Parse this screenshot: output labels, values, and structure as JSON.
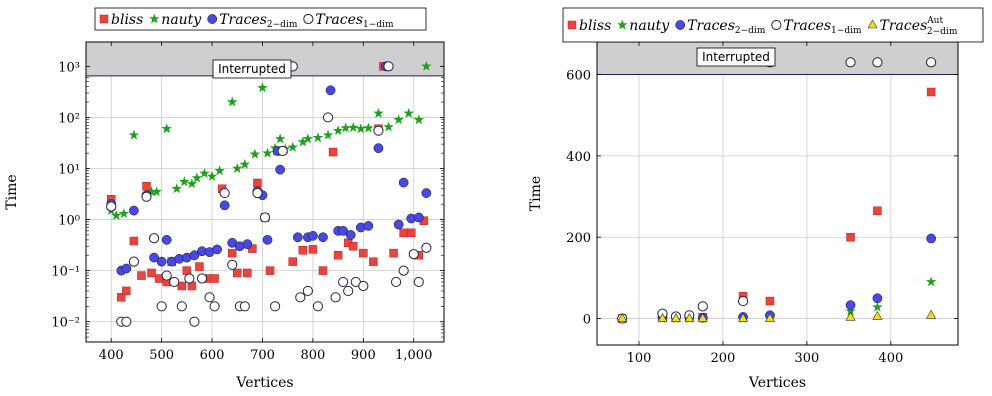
{
  "colors": {
    "bliss": "#e8453c",
    "nauty": "#1ea11e",
    "traces2": "#4848e6",
    "traces1_fill": "#ffffff",
    "traces1_stroke": "#222244",
    "aut": "#f0e010",
    "band": "#cfcfcf",
    "grid": "#cccccc"
  },
  "chart_data": [
    {
      "type": "scatter",
      "xlabel": "Vertices",
      "ylabel": "Time",
      "xscale": "linear",
      "yscale": "log",
      "xlim": [
        350,
        1060
      ],
      "ylim": [
        0.004,
        3000
      ],
      "xticks": [
        400,
        500,
        600,
        700,
        800,
        900,
        1000
      ],
      "xtick_labels": [
        "400",
        "500",
        "600",
        "700",
        "800",
        "900",
        "1,000"
      ],
      "yticks": [
        0.01,
        0.1,
        1,
        10,
        100,
        1000
      ],
      "ytick_labels": [
        "10⁻²",
        "10⁻¹",
        "10⁰",
        "10¹",
        "10²",
        "10³"
      ],
      "grid": true,
      "band_label": "Interrupted",
      "band_from": 650,
      "legend": [
        {
          "series": "bliss",
          "main": "bliss",
          "sub": "",
          "sup": ""
        },
        {
          "series": "nauty",
          "main": "nauty",
          "sub": "",
          "sup": ""
        },
        {
          "series": "traces2",
          "main": "Traces",
          "sub": "2−dim",
          "sup": ""
        },
        {
          "series": "traces1",
          "main": "Traces",
          "sub": "1−dim",
          "sup": ""
        }
      ],
      "series": [
        {
          "name": "bliss",
          "marker": "square",
          "points": [
            [
              400,
              2.5
            ],
            [
              420,
              0.03
            ],
            [
              430,
              0.04
            ],
            [
              445,
              0.38
            ],
            [
              460,
              0.08
            ],
            [
              470,
              4.5
            ],
            [
              480,
              0.09
            ],
            [
              495,
              0.07
            ],
            [
              510,
              0.06
            ],
            [
              520,
              0.15
            ],
            [
              540,
              0.05
            ],
            [
              550,
              0.1
            ],
            [
              560,
              0.05
            ],
            [
              575,
              0.12
            ],
            [
              590,
              0.07
            ],
            [
              605,
              0.07
            ],
            [
              620,
              4.0
            ],
            [
              640,
              0.22
            ],
            [
              650,
              0.09
            ],
            [
              670,
              0.09
            ],
            [
              680,
              0.27
            ],
            [
              690,
              5.2
            ],
            [
              705,
              1.1
            ],
            [
              715,
              0.1
            ],
            [
              730,
              22
            ],
            [
              740,
              1000
            ],
            [
              760,
              0.15
            ],
            [
              780,
              0.25
            ],
            [
              800,
              0.26
            ],
            [
              820,
              0.1
            ],
            [
              840,
              21
            ],
            [
              850,
              0.2
            ],
            [
              870,
              0.35
            ],
            [
              880,
              0.3
            ],
            [
              900,
              0.22
            ],
            [
              920,
              0.15
            ],
            [
              930,
              60
            ],
            [
              940,
              1000
            ],
            [
              960,
              0.22
            ],
            [
              980,
              0.55
            ],
            [
              995,
              0.55
            ],
            [
              1010,
              0.2
            ],
            [
              1020,
              0.95
            ]
          ]
        },
        {
          "name": "nauty",
          "marker": "star",
          "points": [
            [
              400,
              1.5
            ],
            [
              410,
              1.2
            ],
            [
              425,
              1.3
            ],
            [
              445,
              45
            ],
            [
              470,
              3.0
            ],
            [
              480,
              3.5
            ],
            [
              490,
              3.5
            ],
            [
              510,
              60
            ],
            [
              530,
              4.0
            ],
            [
              545,
              5.5
            ],
            [
              560,
              5.0
            ],
            [
              570,
              6.5
            ],
            [
              585,
              8.0
            ],
            [
              600,
              7.0
            ],
            [
              615,
              9.0
            ],
            [
              640,
              200
            ],
            [
              650,
              10
            ],
            [
              665,
              12
            ],
            [
              685,
              19
            ],
            [
              700,
              380
            ],
            [
              710,
              20
            ],
            [
              725,
              25
            ],
            [
              735,
              38
            ],
            [
              745,
              24
            ],
            [
              760,
              26
            ],
            [
              780,
              33
            ],
            [
              790,
              38
            ],
            [
              810,
              40
            ],
            [
              830,
              45
            ],
            [
              850,
              55
            ],
            [
              865,
              62
            ],
            [
              880,
              63
            ],
            [
              895,
              60
            ],
            [
              910,
              62
            ],
            [
              930,
              120
            ],
            [
              950,
              65
            ],
            [
              970,
              90
            ],
            [
              990,
              120
            ],
            [
              1010,
              90
            ],
            [
              1025,
              1000
            ]
          ]
        },
        {
          "name": "traces2",
          "marker": "circle",
          "points": [
            [
              400,
              2.0
            ],
            [
              420,
              0.1
            ],
            [
              430,
              0.11
            ],
            [
              445,
              1.5
            ],
            [
              470,
              3.0
            ],
            [
              485,
              0.18
            ],
            [
              500,
              0.15
            ],
            [
              510,
              0.4
            ],
            [
              520,
              0.15
            ],
            [
              535,
              0.17
            ],
            [
              550,
              0.18
            ],
            [
              565,
              0.2
            ],
            [
              580,
              0.24
            ],
            [
              595,
              0.23
            ],
            [
              610,
              0.26
            ],
            [
              625,
              1.9
            ],
            [
              640,
              0.35
            ],
            [
              655,
              0.3
            ],
            [
              670,
              0.33
            ],
            [
              690,
              3.6
            ],
            [
              700,
              3.0
            ],
            [
              710,
              0.4
            ],
            [
              730,
              22
            ],
            [
              735,
              9.5
            ],
            [
              750,
              1000
            ],
            [
              760,
              1000
            ],
            [
              770,
              0.45
            ],
            [
              790,
              0.45
            ],
            [
              800,
              0.48
            ],
            [
              820,
              0.45
            ],
            [
              835,
              340
            ],
            [
              850,
              0.6
            ],
            [
              860,
              0.6
            ],
            [
              875,
              0.5
            ],
            [
              895,
              0.7
            ],
            [
              910,
              0.75
            ],
            [
              930,
              25
            ],
            [
              945,
              1000
            ],
            [
              950,
              1000
            ],
            [
              970,
              0.8
            ],
            [
              980,
              5.3
            ],
            [
              995,
              1.05
            ],
            [
              1010,
              1.1
            ],
            [
              1025,
              3.3
            ]
          ]
        },
        {
          "name": "traces1",
          "marker": "open-circle",
          "points": [
            [
              400,
              1.8
            ],
            [
              420,
              0.01
            ],
            [
              430,
              0.01
            ],
            [
              445,
              0.15
            ],
            [
              470,
              2.8
            ],
            [
              485,
              0.43
            ],
            [
              500,
              0.02
            ],
            [
              510,
              0.08
            ],
            [
              525,
              0.06
            ],
            [
              540,
              0.02
            ],
            [
              555,
              0.07
            ],
            [
              565,
              0.01
            ],
            [
              580,
              0.07
            ],
            [
              595,
              0.03
            ],
            [
              605,
              0.02
            ],
            [
              625,
              3.3
            ],
            [
              640,
              0.13
            ],
            [
              655,
              0.02
            ],
            [
              665,
              0.02
            ],
            [
              690,
              3.3
            ],
            [
              705,
              1.1
            ],
            [
              725,
              0.02
            ],
            [
              740,
              22
            ],
            [
              760,
              1000
            ],
            [
              775,
              0.03
            ],
            [
              790,
              0.04
            ],
            [
              810,
              0.02
            ],
            [
              830,
              100
            ],
            [
              845,
              0.03
            ],
            [
              860,
              0.06
            ],
            [
              870,
              0.04
            ],
            [
              885,
              0.06
            ],
            [
              900,
              0.05
            ],
            [
              930,
              55
            ],
            [
              950,
              1000
            ],
            [
              965,
              0.06
            ],
            [
              980,
              0.1
            ],
            [
              1000,
              0.21
            ],
            [
              1010,
              0.06
            ],
            [
              1025,
              0.28
            ]
          ]
        }
      ]
    },
    {
      "type": "scatter",
      "xlabel": "Vertices",
      "ylabel": "Time",
      "xscale": "linear",
      "yscale": "linear",
      "xlim": [
        50,
        480
      ],
      "ylim": [
        -65,
        680
      ],
      "xticks": [
        100,
        200,
        300,
        400
      ],
      "xtick_labels": [
        "100",
        "200",
        "300",
        "400"
      ],
      "yticks": [
        0,
        200,
        400,
        600
      ],
      "ytick_labels": [
        "0",
        "200",
        "400",
        "600"
      ],
      "grid": true,
      "band_label": "Interrupted",
      "band_from": 600,
      "legend": [
        {
          "series": "bliss",
          "main": "bliss",
          "sub": "",
          "sup": ""
        },
        {
          "series": "nauty",
          "main": "nauty",
          "sub": "",
          "sup": ""
        },
        {
          "series": "traces2",
          "main": "Traces",
          "sub": "2−dim",
          "sup": ""
        },
        {
          "series": "traces1",
          "main": "Traces",
          "sub": "1−dim",
          "sup": ""
        },
        {
          "series": "aut",
          "main": "Traces",
          "sub": "2−dim",
          "sup": "Aut"
        }
      ],
      "series": [
        {
          "name": "bliss",
          "marker": "square",
          "points": [
            [
              80,
              0
            ],
            [
              128,
              3
            ],
            [
              144,
              2
            ],
            [
              160,
              5
            ],
            [
              176,
              3
            ],
            [
              224,
              55
            ],
            [
              256,
              43
            ],
            [
              352,
              200
            ],
            [
              384,
              265
            ],
            [
              448,
              557
            ]
          ]
        },
        {
          "name": "nauty",
          "marker": "star",
          "points": [
            [
              80,
              0
            ],
            [
              128,
              0
            ],
            [
              144,
              0
            ],
            [
              160,
              0
            ],
            [
              176,
              0
            ],
            [
              224,
              0
            ],
            [
              256,
              2
            ],
            [
              352,
              18
            ],
            [
              384,
              28
            ],
            [
              448,
              90
            ]
          ]
        },
        {
          "name": "traces2",
          "marker": "circle",
          "points": [
            [
              80,
              0
            ],
            [
              128,
              3
            ],
            [
              144,
              3
            ],
            [
              160,
              4
            ],
            [
              176,
              2
            ],
            [
              224,
              4
            ],
            [
              256,
              8
            ],
            [
              352,
              33
            ],
            [
              384,
              50
            ],
            [
              448,
              197
            ]
          ]
        },
        {
          "name": "traces1",
          "marker": "open-circle",
          "points": [
            [
              80,
              0
            ],
            [
              128,
              12
            ],
            [
              144,
              5
            ],
            [
              160,
              8
            ],
            [
              176,
              30
            ],
            [
              224,
              43
            ],
            [
              256,
              630
            ],
            [
              352,
              630
            ],
            [
              384,
              630
            ],
            [
              448,
              630
            ]
          ]
        },
        {
          "name": "aut",
          "marker": "triangle",
          "points": [
            [
              80,
              0
            ],
            [
              128,
              0
            ],
            [
              144,
              0
            ],
            [
              160,
              0
            ],
            [
              176,
              0
            ],
            [
              224,
              0
            ],
            [
              256,
              0
            ],
            [
              352,
              3
            ],
            [
              384,
              5
            ],
            [
              448,
              8
            ]
          ]
        }
      ]
    }
  ]
}
